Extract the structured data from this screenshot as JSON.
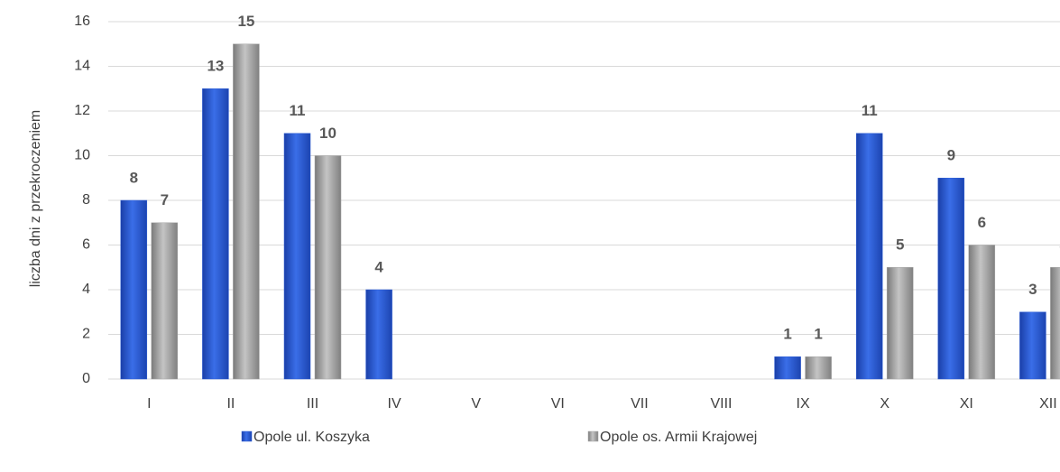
{
  "chart_data": {
    "type": "bar",
    "y_label": "liczba dni z przekroczeniem",
    "categories": [
      "I",
      "II",
      "III",
      "IV",
      "V",
      "VI",
      "VII",
      "VIII",
      "IX",
      "X",
      "XI",
      "XII"
    ],
    "series": [
      {
        "name": "Opole ul. Koszyka",
        "color": "#2f5fd6",
        "values": [
          8,
          13,
          11,
          4,
          null,
          null,
          null,
          null,
          1,
          11,
          9,
          3
        ]
      },
      {
        "name": "Opole os. Armii Krajowej",
        "color": "#a6a6a6",
        "values": [
          7,
          15,
          10,
          null,
          null,
          null,
          null,
          null,
          1,
          5,
          6,
          5
        ]
      }
    ],
    "ylim": [
      0,
      16
    ],
    "yticks": [
      0,
      2,
      4,
      6,
      8,
      10,
      12,
      14,
      16
    ],
    "grid": true
  }
}
